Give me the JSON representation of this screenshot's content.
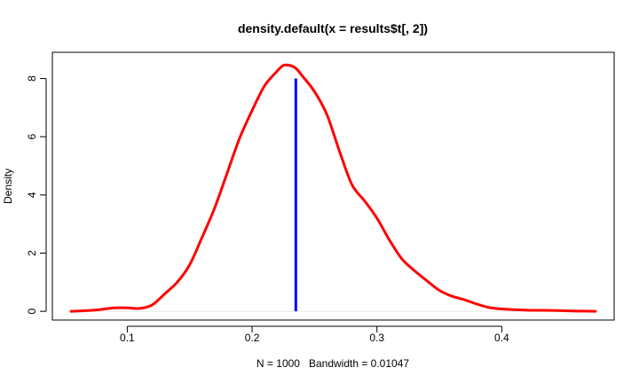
{
  "chart_data": {
    "type": "line",
    "title": "density.default(x = results$t[, 2])",
    "xlabel": "N = 1000   Bandwidth = 0.01047",
    "ylabel": "Density",
    "xlim": [
      0.04,
      0.49
    ],
    "ylim": [
      -0.3,
      8.9
    ],
    "x_ticks": [
      0.1,
      0.2,
      0.3,
      0.4
    ],
    "x_tick_labels": [
      "0.1",
      "0.2",
      "0.3",
      "0.4"
    ],
    "y_ticks": [
      0,
      2,
      4,
      6,
      8
    ],
    "y_tick_labels": [
      "0",
      "2",
      "4",
      "6",
      "8"
    ],
    "grid": false,
    "legend": "none",
    "series": [
      {
        "color": "#ff0000",
        "x": [
          0.055,
          0.07,
          0.08,
          0.09,
          0.1,
          0.11,
          0.12,
          0.13,
          0.14,
          0.15,
          0.16,
          0.17,
          0.18,
          0.19,
          0.2,
          0.21,
          0.22,
          0.225,
          0.23,
          0.235,
          0.24,
          0.25,
          0.26,
          0.27,
          0.28,
          0.29,
          0.3,
          0.31,
          0.32,
          0.33,
          0.34,
          0.35,
          0.36,
          0.37,
          0.38,
          0.39,
          0.4,
          0.42,
          0.44,
          0.46,
          0.475
        ],
        "y": [
          0.0,
          0.03,
          0.07,
          0.12,
          0.12,
          0.1,
          0.22,
          0.6,
          1.0,
          1.6,
          2.55,
          3.55,
          4.75,
          5.95,
          6.9,
          7.75,
          8.25,
          8.45,
          8.45,
          8.35,
          8.1,
          7.55,
          6.75,
          5.5,
          4.35,
          3.8,
          3.2,
          2.45,
          1.8,
          1.4,
          1.05,
          0.72,
          0.52,
          0.4,
          0.25,
          0.13,
          0.08,
          0.04,
          0.03,
          0.01,
          0.0
        ]
      }
    ],
    "reference_line": {
      "x": 0.235,
      "y": [
        0,
        8.0
      ],
      "color": "#0000ff"
    }
  }
}
